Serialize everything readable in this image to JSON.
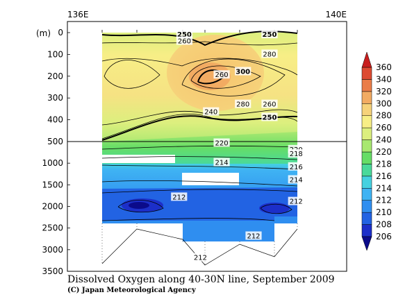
{
  "chart_data": {
    "type": "heatmap",
    "title": "Dissolved Oxygen along 40-30N line, September 2009",
    "credit": "(C) Japan Meteorological Agency",
    "ylabel": "(m)",
    "x_labels_top": [
      "136E",
      "140E"
    ],
    "y_ticks": [
      0,
      100,
      200,
      300,
      400,
      500,
      1000,
      1500,
      2000,
      2500,
      3000,
      3500
    ],
    "y_scale": "upper 0-500 m linear, lower 500-3500 m compressed",
    "colorbar": {
      "levels": [
        206,
        208,
        210,
        212,
        214,
        216,
        218,
        220,
        240,
        260,
        280,
        300,
        320,
        340,
        360
      ],
      "colors": [
        "#0b0b8a",
        "#1c2fc9",
        "#2263e3",
        "#2f8ef0",
        "#3fb3f3",
        "#45d1e0",
        "#4ad99a",
        "#66dd66",
        "#a8e870",
        "#dcef7e",
        "#f7ee86",
        "#f6d27a",
        "#f2ab62",
        "#ea7d48",
        "#dd4b32",
        "#c81e1e"
      ],
      "extend": "both"
    },
    "contour_labels": [
      {
        "value": 250,
        "depth": 10,
        "lon": 137.2,
        "bold": true
      },
      {
        "value": 250,
        "depth": 10,
        "lon": 138.8,
        "bold": true
      },
      {
        "value": 260,
        "depth": 40,
        "lon": 137.2
      },
      {
        "value": 260,
        "depth": 195,
        "lon": 137.9
      },
      {
        "value": 260,
        "depth": 330,
        "lon": 138.8
      },
      {
        "value": 280,
        "depth": 100,
        "lon": 138.8
      },
      {
        "value": 280,
        "depth": 330,
        "lon": 138.3
      },
      {
        "value": 300,
        "depth": 180,
        "lon": 138.3,
        "bold": true
      },
      {
        "value": 240,
        "depth": 365,
        "lon": 137.7
      },
      {
        "value": 250,
        "depth": 390,
        "lon": 138.8,
        "bold": true
      },
      {
        "value": 220,
        "depth": 540,
        "lon": 137.9
      },
      {
        "value": 214,
        "depth": 990,
        "lon": 137.9
      },
      {
        "value": 212,
        "depth": 1790,
        "lon": 137.1
      },
      {
        "value": 220,
        "depth": 690,
        "lon": 139.3
      },
      {
        "value": 218,
        "depth": 790,
        "lon": 139.3
      },
      {
        "value": 216,
        "depth": 1090,
        "lon": 139.3
      },
      {
        "value": 214,
        "depth": 1390,
        "lon": 139.3
      },
      {
        "value": 212,
        "depth": 1890,
        "lon": 139.3
      },
      {
        "value": 212,
        "depth": 2690,
        "lon": 138.5
      },
      {
        "value": 212,
        "depth": 3190,
        "lon": 137.5
      }
    ]
  }
}
